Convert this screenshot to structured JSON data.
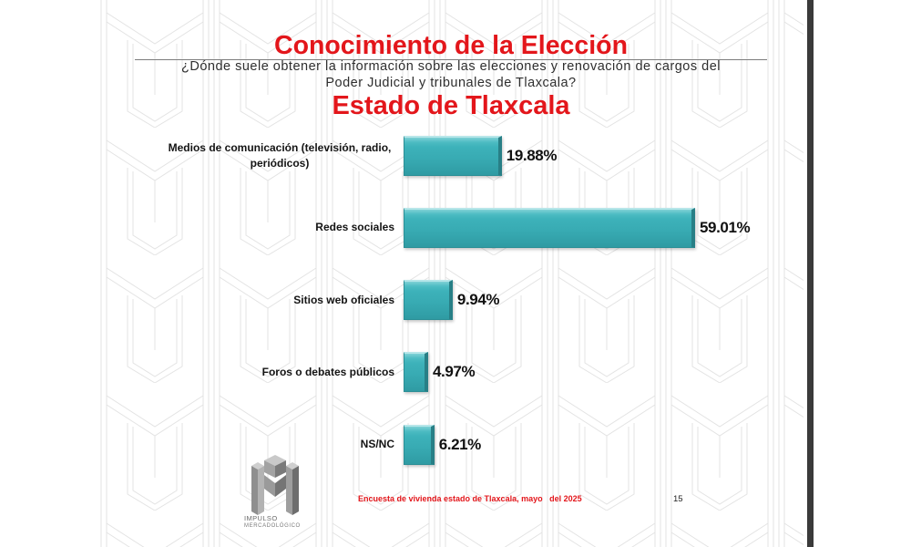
{
  "slide": {
    "title": "Conocimiento de la Elección",
    "question": [
      "¿Dónde suele obtener la información sobre las elecciones y renovación de cargos del",
      "Poder Judicial y tribunales de Tlaxcala?"
    ],
    "footer": "Encuesta de vivienda estado de Tlaxcala, mayo   del 2025",
    "page_number": "15"
  },
  "logo": {
    "icon": "impulso-m-logo-icon",
    "name": "IMPULSO",
    "tagline": "MERCADOLÓGICO"
  },
  "colors": {
    "title": "#e3161b",
    "bar": "#3bb1b9",
    "footer": "#e3161b",
    "label_text": "#141414"
  },
  "chart_data": {
    "type": "bar",
    "orientation": "horizontal",
    "title": "Estado de Tlaxcala",
    "categories": [
      "Medios de comunicación (televisión, radio, periódicos)",
      "Redes sociales",
      "Sitios web oficiales",
      "Foros o debates públicos",
      "NS/NC"
    ],
    "values": [
      19.88,
      59.01,
      9.94,
      4.97,
      6.21
    ],
    "data_labels": [
      "19.88%",
      "59.01%",
      "9.94%",
      "4.97%",
      "6.21%"
    ],
    "grid": false
  }
}
